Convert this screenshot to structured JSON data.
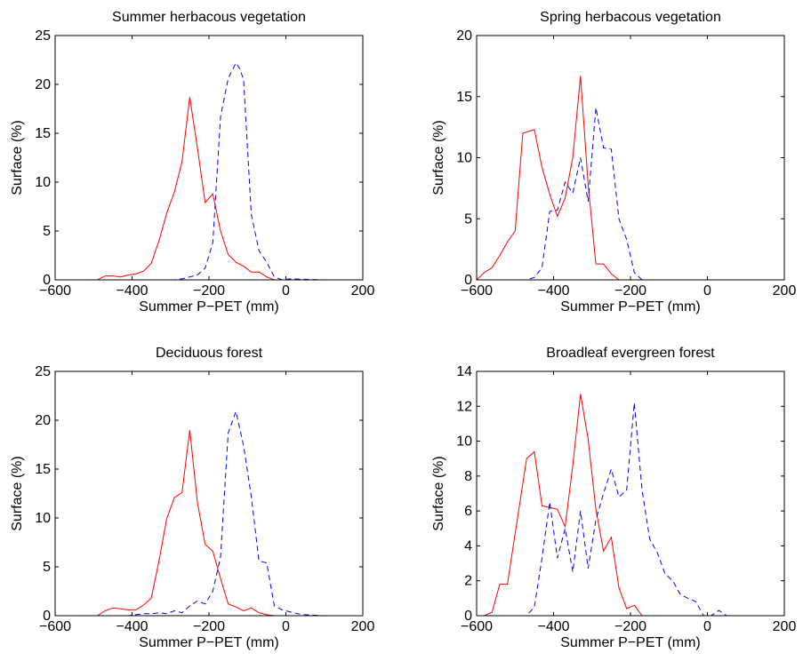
{
  "chart_data": [
    {
      "type": "line",
      "title": "Summer herbacous vegetation",
      "xlabel": "Summer P−PET (mm)",
      "ylabel": "Surface (%)",
      "xlim": [
        -600,
        200
      ],
      "ylim": [
        0,
        25
      ],
      "xticks": [
        "−600",
        "−400",
        "−200",
        "0",
        "200"
      ],
      "xtick_values": [
        -600,
        -400,
        -200,
        0,
        200
      ],
      "yticks": [
        "0",
        "5",
        "10",
        "15",
        "20",
        "25"
      ],
      "ytick_values": [
        0,
        5,
        10,
        15,
        20,
        25
      ],
      "grid": false,
      "series": [
        {
          "color": "#ff0000",
          "style": "solid",
          "x": [
            -600,
            -490,
            -470,
            -450,
            -430,
            -410,
            -390,
            -370,
            -350,
            -330,
            -310,
            -290,
            -270,
            -250,
            -230,
            -210,
            -190,
            -170,
            -150,
            -130,
            -110,
            -90,
            -70,
            -50,
            -30,
            100
          ],
          "y": [
            0,
            0,
            0.4,
            0.4,
            0.3,
            0.5,
            0.6,
            0.9,
            1.7,
            4,
            6.8,
            9,
            12.1,
            18.7,
            13.5,
            7.9,
            8.8,
            5,
            2.6,
            1.8,
            1.4,
            0.8,
            0.8,
            0.3,
            0,
            0
          ]
        },
        {
          "color": "#0000ff",
          "style": "dashed",
          "x": [
            -600,
            -290,
            -270,
            -250,
            -230,
            -210,
            -190,
            -170,
            -150,
            -130,
            -120,
            -110,
            -90,
            -70,
            -50,
            -30,
            -10,
            10,
            100
          ],
          "y": [
            0,
            0,
            0.1,
            0.3,
            0.5,
            1.2,
            3.8,
            16.7,
            20.6,
            22.2,
            21.6,
            20.5,
            6.7,
            3,
            1.8,
            0.3,
            0,
            0.1,
            0
          ]
        }
      ]
    },
    {
      "type": "line",
      "title": "Spring herbacous vegetation",
      "xlabel": "Summer P−PET (mm)",
      "ylabel": "Surface (%)",
      "xlim": [
        -600,
        200
      ],
      "ylim": [
        0,
        20
      ],
      "xticks": [
        "−600",
        "−400",
        "−200",
        "0",
        "200"
      ],
      "xtick_values": [
        -600,
        -400,
        -200,
        0,
        200
      ],
      "yticks": [
        "0",
        "5",
        "10",
        "15",
        "20"
      ],
      "ytick_values": [
        0,
        5,
        10,
        15,
        20
      ],
      "grid": false,
      "series": [
        {
          "color": "#ff0000",
          "style": "solid",
          "x": [
            -600,
            -580,
            -560,
            -540,
            -520,
            -500,
            -480,
            -470,
            -450,
            -430,
            -410,
            -390,
            -370,
            -350,
            -330,
            -310,
            -290,
            -270,
            -250,
            -230,
            -200,
            100
          ],
          "y": [
            0,
            0.6,
            1,
            2,
            3.1,
            4,
            12,
            12.1,
            12.3,
            9.2,
            7,
            5.2,
            6.7,
            10,
            16.7,
            7.8,
            1.3,
            1.3,
            0.5,
            0,
            0,
            0
          ]
        },
        {
          "color": "#0000ff",
          "style": "dashed",
          "x": [
            -600,
            -470,
            -450,
            -430,
            -410,
            -390,
            -370,
            -350,
            -330,
            -310,
            -290,
            -270,
            -250,
            -230,
            -210,
            -190,
            -170,
            100
          ],
          "y": [
            0,
            0,
            0.2,
            1,
            5.6,
            5.7,
            8,
            7.1,
            10,
            6.4,
            14.1,
            10.8,
            10.7,
            5,
            3.3,
            0.6,
            0,
            0
          ]
        }
      ]
    },
    {
      "type": "line",
      "title": "Deciduous forest",
      "xlabel": "Summer P−PET (mm)",
      "ylabel": "Surface (%)",
      "xlim": [
        -600,
        200
      ],
      "ylim": [
        0,
        25
      ],
      "xticks": [
        "−600",
        "−400",
        "−200",
        "0",
        "200"
      ],
      "xtick_values": [
        -600,
        -400,
        -200,
        0,
        200
      ],
      "yticks": [
        "0",
        "5",
        "10",
        "15",
        "20",
        "25"
      ],
      "ytick_values": [
        0,
        5,
        10,
        15,
        20,
        25
      ],
      "grid": false,
      "series": [
        {
          "color": "#ff0000",
          "style": "solid",
          "x": [
            -600,
            -490,
            -470,
            -450,
            -430,
            -410,
            -390,
            -370,
            -350,
            -330,
            -310,
            -290,
            -270,
            -250,
            -230,
            -210,
            -190,
            -170,
            -150,
            -130,
            -110,
            -90,
            -70,
            -50,
            -30,
            100
          ],
          "y": [
            0,
            0,
            0.5,
            0.8,
            0.7,
            0.6,
            0.6,
            1.1,
            1.8,
            5.6,
            9.9,
            12.1,
            12.6,
            19,
            11.6,
            7.3,
            6.6,
            3.8,
            1.2,
            0.9,
            0.5,
            0.8,
            0.3,
            0.1,
            0,
            0
          ]
        },
        {
          "color": "#0000ff",
          "style": "dashed",
          "x": [
            -600,
            -410,
            -390,
            -370,
            -350,
            -330,
            -310,
            -290,
            -270,
            -250,
            -230,
            -210,
            -190,
            -170,
            -150,
            -130,
            -110,
            -90,
            -70,
            -50,
            -30,
            -10,
            10,
            30,
            50,
            100
          ],
          "y": [
            0,
            0,
            0.1,
            0.2,
            0.2,
            0.3,
            0.2,
            0.5,
            0.3,
            1,
            1.5,
            1.2,
            2.5,
            6,
            18.7,
            20.9,
            17.4,
            12.2,
            5.6,
            5.4,
            1,
            0.6,
            0.4,
            0.2,
            0.1,
            0
          ]
        }
      ]
    },
    {
      "type": "line",
      "title": "Broadleaf evergreen forest",
      "xlabel": "Summer P−PET (mm)",
      "ylabel": "Surface (%)",
      "xlim": [
        -600,
        200
      ],
      "ylim": [
        0,
        14
      ],
      "xticks": [
        "−600",
        "−400",
        "−200",
        "0",
        "200"
      ],
      "xtick_values": [
        -600,
        -400,
        -200,
        0,
        200
      ],
      "yticks": [
        "0",
        "2",
        "4",
        "6",
        "8",
        "10",
        "12",
        "14"
      ],
      "ytick_values": [
        0,
        2,
        4,
        6,
        8,
        10,
        12,
        14
      ],
      "grid": false,
      "series": [
        {
          "color": "#ff0000",
          "style": "solid",
          "x": [
            -600,
            -580,
            -560,
            -540,
            -520,
            -500,
            -470,
            -450,
            -430,
            -410,
            -390,
            -370,
            -350,
            -330,
            -310,
            -290,
            -270,
            -250,
            -230,
            -210,
            -190,
            -170,
            -150,
            100
          ],
          "y": [
            0,
            0,
            0.2,
            1.8,
            1.8,
            4.7,
            9,
            9.4,
            6.3,
            6.2,
            6.1,
            5.1,
            8.6,
            12.7,
            10.1,
            6.1,
            3.7,
            4.5,
            1.6,
            0.4,
            0.6,
            0,
            0,
            0
          ]
        },
        {
          "color": "#0000ff",
          "style": "dashed",
          "x": [
            -600,
            -470,
            -450,
            -430,
            -410,
            -390,
            -370,
            -350,
            -330,
            -310,
            -290,
            -270,
            -250,
            -230,
            -210,
            -190,
            -170,
            -150,
            -130,
            -110,
            -90,
            -70,
            -50,
            -30,
            -10,
            10,
            30,
            50,
            100
          ],
          "y": [
            0,
            0,
            0.5,
            3.3,
            6.5,
            3.3,
            5,
            2.5,
            6,
            2.7,
            5.5,
            7,
            8.4,
            6.8,
            7.2,
            12.2,
            7.2,
            4.4,
            3.6,
            2.4,
            2,
            1.2,
            1,
            0.8,
            0,
            0,
            0.3,
            0,
            0
          ]
        }
      ]
    }
  ]
}
